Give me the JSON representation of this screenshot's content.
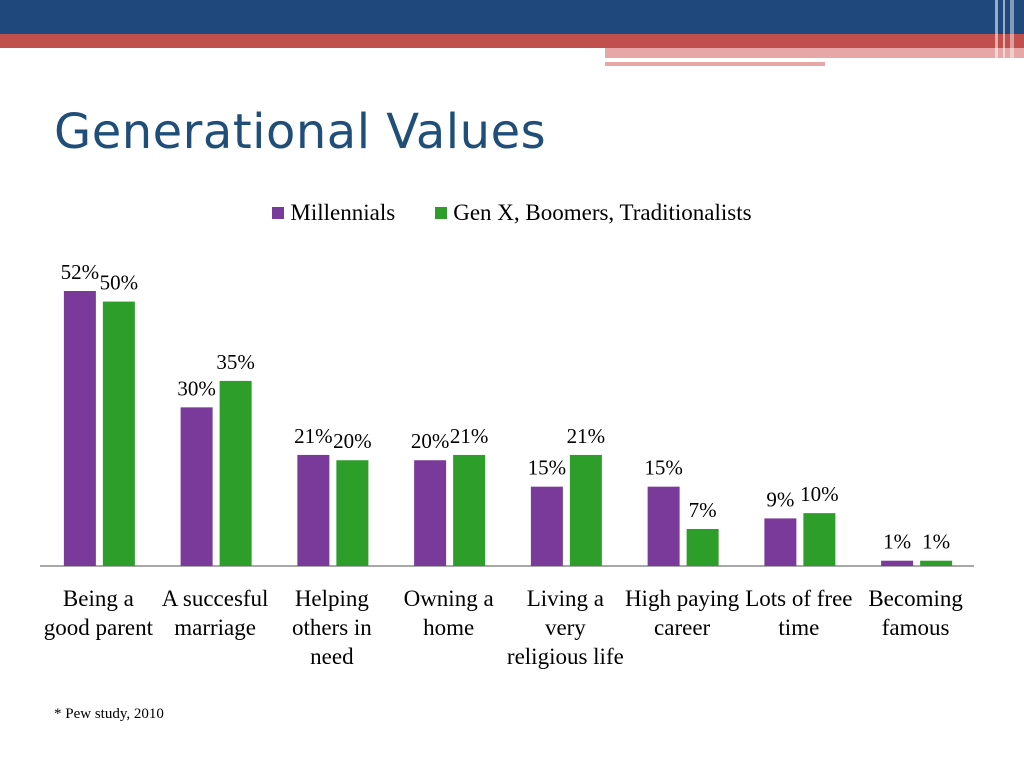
{
  "slide": {
    "title": "Generational Values",
    "footnote": "* Pew study, 2010"
  },
  "colors": {
    "header_blue": "#1f497d",
    "header_red": "#c0504d",
    "header_pink": "#e6a7a6",
    "title": "#1f4e79"
  },
  "chart_data": {
    "type": "bar",
    "categories": [
      "Being a good parent",
      "A succesful marriage",
      "Helping others in need",
      "Owning a home",
      "Living a very religious life",
      "High paying career",
      "Lots of free time",
      "Becoming famous"
    ],
    "series": [
      {
        "name": "Millennials",
        "color": "#7a3a9a",
        "values": [
          52,
          30,
          21,
          20,
          15,
          15,
          9,
          1
        ],
        "labels": [
          "52%",
          "30%",
          "21%",
          "20%",
          "15%",
          "15%",
          "9%",
          "1%"
        ]
      },
      {
        "name": "Gen X, Boomers, Traditionalists",
        "color": "#2e9e2a",
        "values": [
          50,
          35,
          20,
          21,
          21,
          7,
          10,
          1
        ],
        "labels": [
          "50%",
          "35%",
          "20%",
          "21%",
          "21%",
          "7%",
          "10%",
          "1%"
        ]
      }
    ],
    "ylim": [
      0,
      52
    ],
    "grid": false,
    "legend": "top-center",
    "title": "",
    "xlabel": "",
    "ylabel": ""
  }
}
